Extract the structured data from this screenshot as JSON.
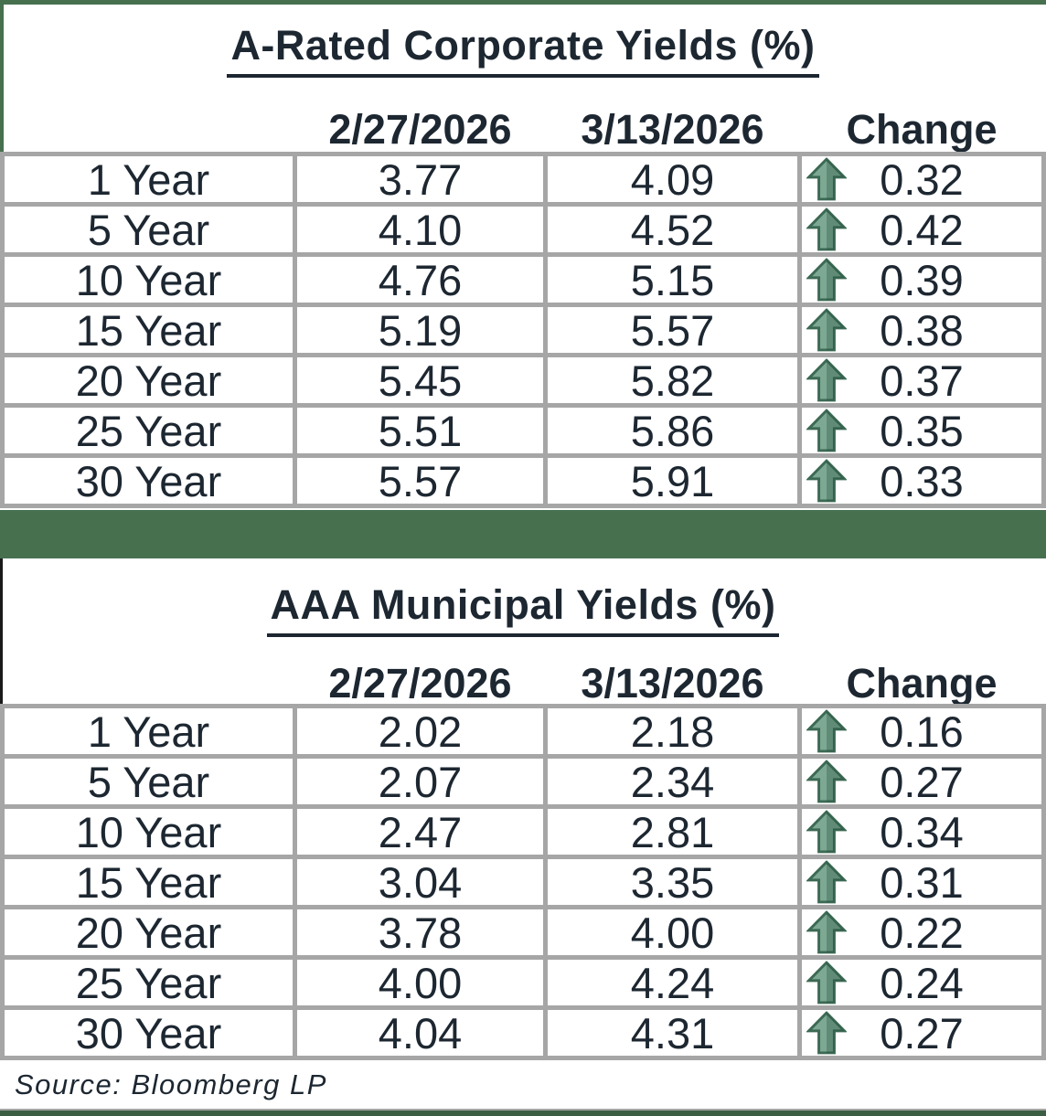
{
  "page": {
    "accent_green": "#47704F",
    "divider_green": "#47704F",
    "bottom_bar_green": "#3B5E43",
    "left_black_bar": "#1A1A1A",
    "border_gray": "#A6A6A6",
    "text_color": "#1D2731",
    "arrow_fill": "#7DA893",
    "arrow_outline": "#3C6A54",
    "arrow_shade": "rgba(31,74,55,0.30)"
  },
  "source_note": "Source: Bloomberg LP",
  "tables": [
    {
      "title": "A-Rated Corporate Yields (%)",
      "columns": {
        "label": "",
        "date1": "2/27/2026",
        "date2": "3/13/2026",
        "change": "Change"
      },
      "rows": [
        {
          "label": "1 Year",
          "date1": "3.77",
          "date2": "4.09",
          "change": "0.32",
          "direction": "up"
        },
        {
          "label": "5 Year",
          "date1": "4.10",
          "date2": "4.52",
          "change": "0.42",
          "direction": "up"
        },
        {
          "label": "10 Year",
          "date1": "4.76",
          "date2": "5.15",
          "change": "0.39",
          "direction": "up"
        },
        {
          "label": "15 Year",
          "date1": "5.19",
          "date2": "5.57",
          "change": "0.38",
          "direction": "up"
        },
        {
          "label": "20 Year",
          "date1": "5.45",
          "date2": "5.82",
          "change": "0.37",
          "direction": "up"
        },
        {
          "label": "25 Year",
          "date1": "5.51",
          "date2": "5.86",
          "change": "0.35",
          "direction": "up"
        },
        {
          "label": "30 Year",
          "date1": "5.57",
          "date2": "5.91",
          "change": "0.33",
          "direction": "up"
        }
      ]
    },
    {
      "title": "AAA Municipal Yields (%)",
      "columns": {
        "label": "",
        "date1": "2/27/2026",
        "date2": "3/13/2026",
        "change": "Change"
      },
      "rows": [
        {
          "label": "1 Year",
          "date1": "2.02",
          "date2": "2.18",
          "change": "0.16",
          "direction": "up"
        },
        {
          "label": "5 Year",
          "date1": "2.07",
          "date2": "2.34",
          "change": "0.27",
          "direction": "up"
        },
        {
          "label": "10 Year",
          "date1": "2.47",
          "date2": "2.81",
          "change": "0.34",
          "direction": "up"
        },
        {
          "label": "15 Year",
          "date1": "3.04",
          "date2": "3.35",
          "change": "0.31",
          "direction": "up"
        },
        {
          "label": "20 Year",
          "date1": "3.78",
          "date2": "4.00",
          "change": "0.22",
          "direction": "up"
        },
        {
          "label": "25 Year",
          "date1": "4.00",
          "date2": "4.24",
          "change": "0.24",
          "direction": "up"
        },
        {
          "label": "30 Year",
          "date1": "4.04",
          "date2": "4.31",
          "change": "0.27",
          "direction": "up"
        }
      ]
    }
  ]
}
